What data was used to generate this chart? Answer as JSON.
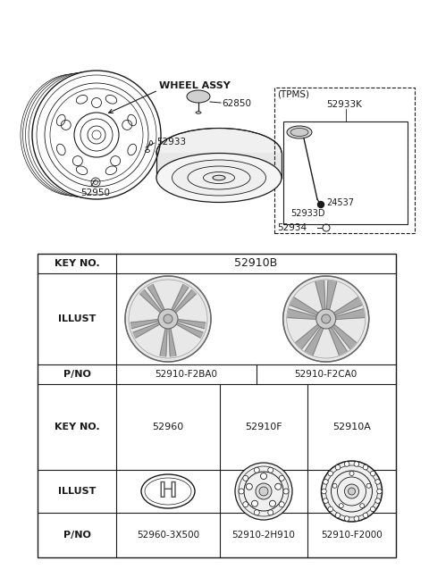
{
  "bg_color": "#ffffff",
  "line_color": "#1a1a1a",
  "gray_color": "#888888",
  "mid_gray": "#bbbbbb",
  "table": {
    "row1_keyno": "KEY NO.",
    "row1_val": "52910B",
    "row2_label": "ILLUST",
    "row3_label": "P/NO",
    "row3_col1": "52910-F2BA0",
    "row3_col2": "52910-F2CA0",
    "row4_keyno": "KEY NO.",
    "row4_col1": "52960",
    "row4_col2": "52910F",
    "row4_col3": "52910A",
    "row5_label": "ILLUST",
    "row6_label": "P/NO",
    "row6_col1": "52960-3X500",
    "row6_col2": "52910-2H910",
    "row6_col3": "52910-F2000"
  },
  "diagram": {
    "wheel_assy_label": "WHEEL ASSY",
    "part_62850": "62850",
    "part_52933": "52933",
    "part_52950": "52950",
    "tpms_label": "(TPMS)",
    "part_52933K": "52933K",
    "part_24537": "24537",
    "part_52933D": "52933D",
    "part_52934": "52934"
  }
}
